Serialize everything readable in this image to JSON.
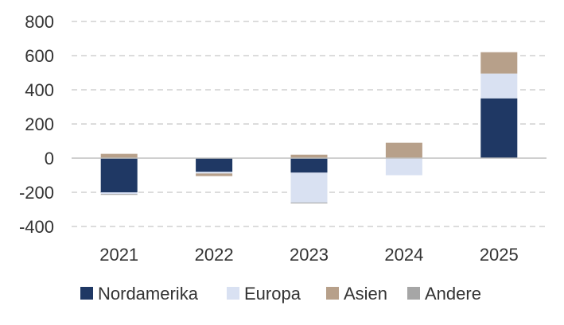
{
  "chart_data": {
    "type": "bar",
    "stacked": true,
    "categories": [
      "2021",
      "2022",
      "2023",
      "2024",
      "2025"
    ],
    "series": [
      {
        "name": "Nordamerika",
        "color": "#1f3864",
        "values": [
          -200,
          -80,
          -85,
          0,
          350
        ]
      },
      {
        "name": "Europa",
        "color": "#d9e1f2",
        "values": [
          -10,
          -10,
          -175,
          -100,
          145
        ]
      },
      {
        "name": "Asien",
        "color": "#b7a08a",
        "values": [
          25,
          -15,
          20,
          90,
          125
        ]
      },
      {
        "name": "Andere",
        "color": "#a6a6a6",
        "values": [
          -5,
          0,
          -5,
          0,
          0
        ]
      }
    ],
    "ylim": [
      -400,
      800
    ],
    "yticks": [
      800,
      600,
      400,
      200,
      0,
      -200,
      -400
    ],
    "grid": true,
    "legend_position": "bottom"
  }
}
